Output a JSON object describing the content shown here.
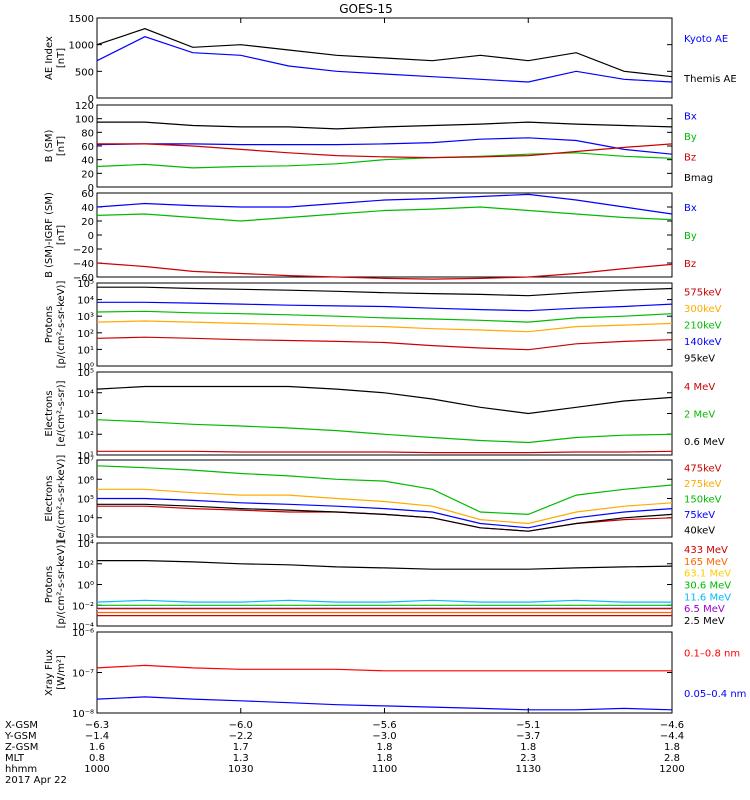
{
  "title": "GOES-15",
  "panels": [
    {
      "ylabel": [
        "AE Index",
        "[nT]"
      ],
      "ticks": [
        "1500",
        "1000",
        "500",
        "0"
      ],
      "legend": [
        {
          "text": "Kyoto AE",
          "color": "#0000ff"
        },
        {
          "text": "Themis AE",
          "color": "#000000"
        }
      ]
    },
    {
      "ylabel": [
        "B (SM)",
        "[nT]"
      ],
      "ticks": [
        "120",
        "100",
        "80",
        "60",
        "40",
        "20",
        "0"
      ],
      "legend": [
        {
          "text": "Bx",
          "color": "#0000ff"
        },
        {
          "text": "By",
          "color": "#00bb00"
        },
        {
          "text": "Bz",
          "color": "#cc0000"
        },
        {
          "text": "Bmag",
          "color": "#000000"
        }
      ]
    },
    {
      "ylabel": [
        "B (SM)-IGRF (SM)",
        "[nT]"
      ],
      "ticks": [
        "60",
        "40",
        "20",
        "0",
        "−20",
        "−40",
        "−60"
      ],
      "legend": [
        {
          "text": "Bx",
          "color": "#0000ff"
        },
        {
          "text": "By",
          "color": "#00bb00"
        },
        {
          "text": "Bz",
          "color": "#cc0000"
        }
      ]
    },
    {
      "ylabel": [
        "Protons",
        "[p/(cm²-s-sr-keV)]"
      ],
      "ticks": [
        "10⁵",
        "10⁴",
        "10³",
        "10²",
        "10¹",
        "10⁰"
      ],
      "legend": [
        {
          "text": "575keV",
          "color": "#cc0000"
        },
        {
          "text": "300keV",
          "color": "#ffaa00"
        },
        {
          "text": "210keV",
          "color": "#00bb00"
        },
        {
          "text": "140keV",
          "color": "#0000ff"
        },
        {
          "text": "95keV",
          "color": "#000000"
        }
      ]
    },
    {
      "ylabel": [
        "Electrons",
        "[e/(cm²-s-sr)]"
      ],
      "ticks": [
        "10⁵",
        "10⁴",
        "10³",
        "10²",
        "10¹"
      ],
      "legend": [
        {
          "text": "4 MeV",
          "color": "#cc0000"
        },
        {
          "text": "2 MeV",
          "color": "#00bb00"
        },
        {
          "text": "0.6 MeV",
          "color": "#000000"
        }
      ]
    },
    {
      "ylabel": [
        "Electrons",
        "[e/(cm²-s-sr-keV)]"
      ],
      "ticks": [
        "10⁷",
        "10⁶",
        "10⁵",
        "10⁴",
        "10³"
      ],
      "legend": [
        {
          "text": "475keV",
          "color": "#cc0000"
        },
        {
          "text": "275keV",
          "color": "#ffaa00"
        },
        {
          "text": "150keV",
          "color": "#00bb00"
        },
        {
          "text": "75keV",
          "color": "#0000ff"
        },
        {
          "text": "40keV",
          "color": "#000000"
        }
      ]
    },
    {
      "ylabel": [
        "Protons",
        "[p/(cm²-s-sr-keV)]"
      ],
      "ticks": [
        "10⁴",
        "10²",
        "10⁰",
        "10⁻²",
        "10⁻⁴"
      ],
      "legend": [
        {
          "text": "433 MeV",
          "color": "#cc0000"
        },
        {
          "text": "165 MeV",
          "color": "#ff6600"
        },
        {
          "text": "63.1 MeV",
          "color": "#ffcc00"
        },
        {
          "text": "30.6 MeV",
          "color": "#00bb00"
        },
        {
          "text": "11.6 MeV",
          "color": "#00bbff"
        },
        {
          "text": "6.5 MeV",
          "color": "#9900cc"
        },
        {
          "text": "2.5 MeV",
          "color": "#000000"
        }
      ]
    },
    {
      "ylabel": [
        "Xray Flux",
        "[W/m²]"
      ],
      "ticks": [
        "10⁻⁶",
        "10⁻⁷",
        "10⁻⁸"
      ],
      "legend": [
        {
          "text": "0.1–0.8 nm",
          "color": "#ff0000"
        },
        {
          "text": "0.05–0.4 nm",
          "color": "#0000ff"
        }
      ]
    }
  ],
  "x_axis": {
    "row_labels": [
      "X-GSM",
      "Y-GSM",
      "Z-GSM",
      "MLT",
      "hhmm"
    ],
    "columns": [
      [
        "−6.3",
        "−1.4",
        "1.6",
        "0.8",
        "1000"
      ],
      [
        "−6.0",
        "−2.2",
        "1.7",
        "1.3",
        "1030"
      ],
      [
        "−5.6",
        "−3.0",
        "1.8",
        "1.8",
        "1100"
      ],
      [
        "−5.1",
        "−3.7",
        "1.8",
        "2.3",
        "1130"
      ],
      [
        "−4.6",
        "−4.4",
        "1.8",
        "2.8",
        "1200"
      ]
    ],
    "date": "2017 Apr 22"
  },
  "chart_data": {
    "type": "line",
    "title": "GOES-15",
    "x": [
      "1000",
      "1010",
      "1020",
      "1030",
      "1040",
      "1050",
      "1100",
      "1110",
      "1120",
      "1130",
      "1140",
      "1150",
      "1200"
    ],
    "xlabel": "hhmm",
    "subplots": [
      {
        "ylabel": "AE Index [nT]",
        "ylim": [
          0,
          1500
        ],
        "series": [
          {
            "name": "Kyoto AE",
            "color": "#0000ff",
            "values": [
              700,
              1150,
              850,
              800,
              600,
              500,
              450,
              400,
              350,
              300,
              500,
              350,
              300
            ]
          },
          {
            "name": "Themis AE",
            "color": "#000000",
            "values": [
              1000,
              1300,
              950,
              1000,
              900,
              800,
              750,
              700,
              800,
              700,
              850,
              500,
              400
            ]
          }
        ]
      },
      {
        "ylabel": "B (SM) [nT]",
        "ylim": [
          0,
          120
        ],
        "series": [
          {
            "name": "Bx",
            "color": "#0000ff",
            "values": [
              62,
              63,
              63,
              62,
              62,
              62,
              63,
              65,
              70,
              72,
              68,
              55,
              48
            ]
          },
          {
            "name": "By",
            "color": "#00bb00",
            "values": [
              30,
              33,
              28,
              30,
              31,
              34,
              40,
              43,
              45,
              48,
              50,
              45,
              42
            ]
          },
          {
            "name": "Bz",
            "color": "#cc0000",
            "values": [
              63,
              63,
              60,
              55,
              50,
              46,
              44,
              43,
              44,
              46,
              52,
              58,
              63
            ]
          },
          {
            "name": "Bmag",
            "color": "#000000",
            "values": [
              95,
              95,
              90,
              88,
              88,
              85,
              88,
              90,
              92,
              95,
              92,
              90,
              88
            ]
          }
        ]
      },
      {
        "ylabel": "B (SM)-IGRF (SM) [nT]",
        "ylim": [
          -60,
          60
        ],
        "series": [
          {
            "name": "Bx",
            "color": "#0000ff",
            "values": [
              40,
              45,
              42,
              40,
              40,
              45,
              50,
              52,
              55,
              58,
              50,
              40,
              30
            ]
          },
          {
            "name": "By",
            "color": "#00bb00",
            "values": [
              28,
              30,
              25,
              20,
              25,
              30,
              35,
              37,
              40,
              35,
              30,
              25,
              22
            ]
          },
          {
            "name": "Bz",
            "color": "#cc0000",
            "values": [
              -40,
              -45,
              -52,
              -55,
              -58,
              -60,
              -62,
              -63,
              -62,
              -60,
              -55,
              -48,
              -42
            ]
          }
        ]
      },
      {
        "ylabel": "Protons [p/(cm2-s-sr-keV)]",
        "ylim": [
          1,
          1000000
        ],
        "yscale": "log",
        "series": [
          {
            "name": "575keV",
            "color": "#cc0000",
            "values": [
              100,
              120,
              100,
              80,
              70,
              60,
              50,
              30,
              20,
              15,
              40,
              60,
              80
            ]
          },
          {
            "name": "300keV",
            "color": "#ffaa00",
            "values": [
              1500,
              1800,
              1500,
              1200,
              1000,
              800,
              700,
              500,
              400,
              300,
              700,
              900,
              1200
            ]
          },
          {
            "name": "210keV",
            "color": "#00bb00",
            "values": [
              8000,
              9000,
              7000,
              6000,
              5000,
              4000,
              3000,
              2500,
              2000,
              1500,
              3000,
              4000,
              6000
            ]
          },
          {
            "name": "140keV",
            "color": "#0000ff",
            "values": [
              40000,
              40000,
              35000,
              30000,
              25000,
              22000,
              20000,
              15000,
              12000,
              10000,
              15000,
              20000,
              30000
            ]
          },
          {
            "name": "95keV",
            "color": "#000000",
            "values": [
              500000,
              500000,
              400000,
              350000,
              300000,
              250000,
              200000,
              170000,
              150000,
              120000,
              200000,
              300000,
              400000
            ]
          }
        ]
      },
      {
        "ylabel": "Electrons [e/(cm2-s-sr)]",
        "ylim": [
          10,
          100000
        ],
        "yscale": "log",
        "series": [
          {
            "name": "4 MeV",
            "color": "#cc0000",
            "values": [
              15,
              15,
              15,
              14,
              14,
              14,
              14,
              13,
              13,
              13,
              14,
              14,
              15
            ]
          },
          {
            "name": "2 MeV",
            "color": "#00bb00",
            "values": [
              500,
              400,
              300,
              250,
              200,
              150,
              100,
              70,
              50,
              40,
              70,
              90,
              100
            ]
          },
          {
            "name": "0.6 MeV",
            "color": "#000000",
            "values": [
              15000,
              20000,
              20000,
              20000,
              20000,
              15000,
              10000,
              5000,
              2000,
              1000,
              2000,
              4000,
              6000
            ]
          }
        ]
      },
      {
        "ylabel": "Electrons [e/(cm2-s-sr-keV)]",
        "ylim": [
          1000,
          10000000
        ],
        "yscale": "log",
        "series": [
          {
            "name": "475keV",
            "color": "#cc0000",
            "values": [
              40000,
              40000,
              30000,
              25000,
              20000,
              20000,
              15000,
              10000,
              3000,
              2000,
              5000,
              8000,
              10000
            ]
          },
          {
            "name": "275keV",
            "color": "#ffaa00",
            "values": [
              300000,
              300000,
              200000,
              150000,
              150000,
              100000,
              70000,
              40000,
              8000,
              5000,
              20000,
              40000,
              60000
            ]
          },
          {
            "name": "150keV",
            "color": "#00bb00",
            "values": [
              5000000,
              4000000,
              3000000,
              2000000,
              1500000,
              1000000,
              800000,
              300000,
              20000,
              15000,
              150000,
              300000,
              500000
            ]
          },
          {
            "name": "75keV",
            "color": "#0000ff",
            "values": [
              100000,
              100000,
              80000,
              60000,
              50000,
              40000,
              30000,
              20000,
              5000,
              3000,
              10000,
              20000,
              30000
            ]
          },
          {
            "name": "40keV",
            "color": "#000000",
            "values": [
              50000,
              50000,
              40000,
              30000,
              25000,
              20000,
              15000,
              10000,
              3000,
              2000,
              5000,
              10000,
              15000
            ]
          }
        ]
      },
      {
        "ylabel": "Protons [p/(cm2-s-sr-keV)]",
        "ylim": [
          0.0001,
          10000
        ],
        "yscale": "log",
        "series": [
          {
            "name": "433 MeV",
            "color": "#cc0000",
            "values": [
              0.001,
              0.001,
              0.001,
              0.001,
              0.001,
              0.001,
              0.001,
              0.001,
              0.001,
              0.001,
              0.001,
              0.001,
              0.001
            ]
          },
          {
            "name": "165 MeV",
            "color": "#ff6600",
            "values": [
              0.002,
              0.002,
              0.002,
              0.002,
              0.002,
              0.002,
              0.002,
              0.002,
              0.002,
              0.002,
              0.002,
              0.002,
              0.002
            ]
          },
          {
            "name": "63.1 MeV",
            "color": "#ffcc00",
            "values": [
              0.004,
              0.004,
              0.004,
              0.004,
              0.004,
              0.004,
              0.004,
              0.004,
              0.004,
              0.004,
              0.004,
              0.004,
              0.004
            ]
          },
          {
            "name": "30.6 MeV",
            "color": "#00bb00",
            "values": [
              0.01,
              0.01,
              0.01,
              0.01,
              0.01,
              0.01,
              0.01,
              0.01,
              0.01,
              0.01,
              0.01,
              0.01,
              0.01
            ]
          },
          {
            "name": "11.6 MeV",
            "color": "#00bbff",
            "values": [
              0.02,
              0.03,
              0.02,
              0.02,
              0.03,
              0.02,
              0.02,
              0.03,
              0.02,
              0.02,
              0.03,
              0.02,
              0.02
            ]
          },
          {
            "name": "6.5 MeV",
            "color": "#9900cc",
            "values": [
              0.005,
              0.005,
              0.005,
              0.005,
              0.005,
              0.005,
              0.005,
              0.005,
              0.005,
              0.005,
              0.005,
              0.005,
              0.005
            ]
          },
          {
            "name": "2.5 MeV",
            "color": "#000000",
            "values": [
              200,
              200,
              150,
              100,
              80,
              50,
              40,
              30,
              30,
              30,
              40,
              50,
              60
            ]
          }
        ]
      },
      {
        "ylabel": "Xray Flux [W/m2]",
        "ylim": [
          1e-08,
          1e-06
        ],
        "yscale": "log",
        "series": [
          {
            "name": "0.1–0.8 nm",
            "color": "#ff0000",
            "values": [
              1.3e-07,
              1.5e-07,
              1.3e-07,
              1.2e-07,
              1.2e-07,
              1.2e-07,
              1.1e-07,
              1.1e-07,
              1.1e-07,
              1.1e-07,
              1.1e-07,
              1.1e-07,
              1.1e-07
            ]
          },
          {
            "name": "0.05–0.4 nm",
            "color": "#0000ff",
            "values": [
              2.2e-08,
              2.5e-08,
              2.2e-08,
              2e-08,
              1.8e-08,
              1.6e-08,
              1.5e-08,
              1.4e-08,
              1.3e-08,
              1.2e-08,
              1.2e-08,
              1.3e-08,
              1.2e-08
            ]
          }
        ]
      }
    ]
  }
}
